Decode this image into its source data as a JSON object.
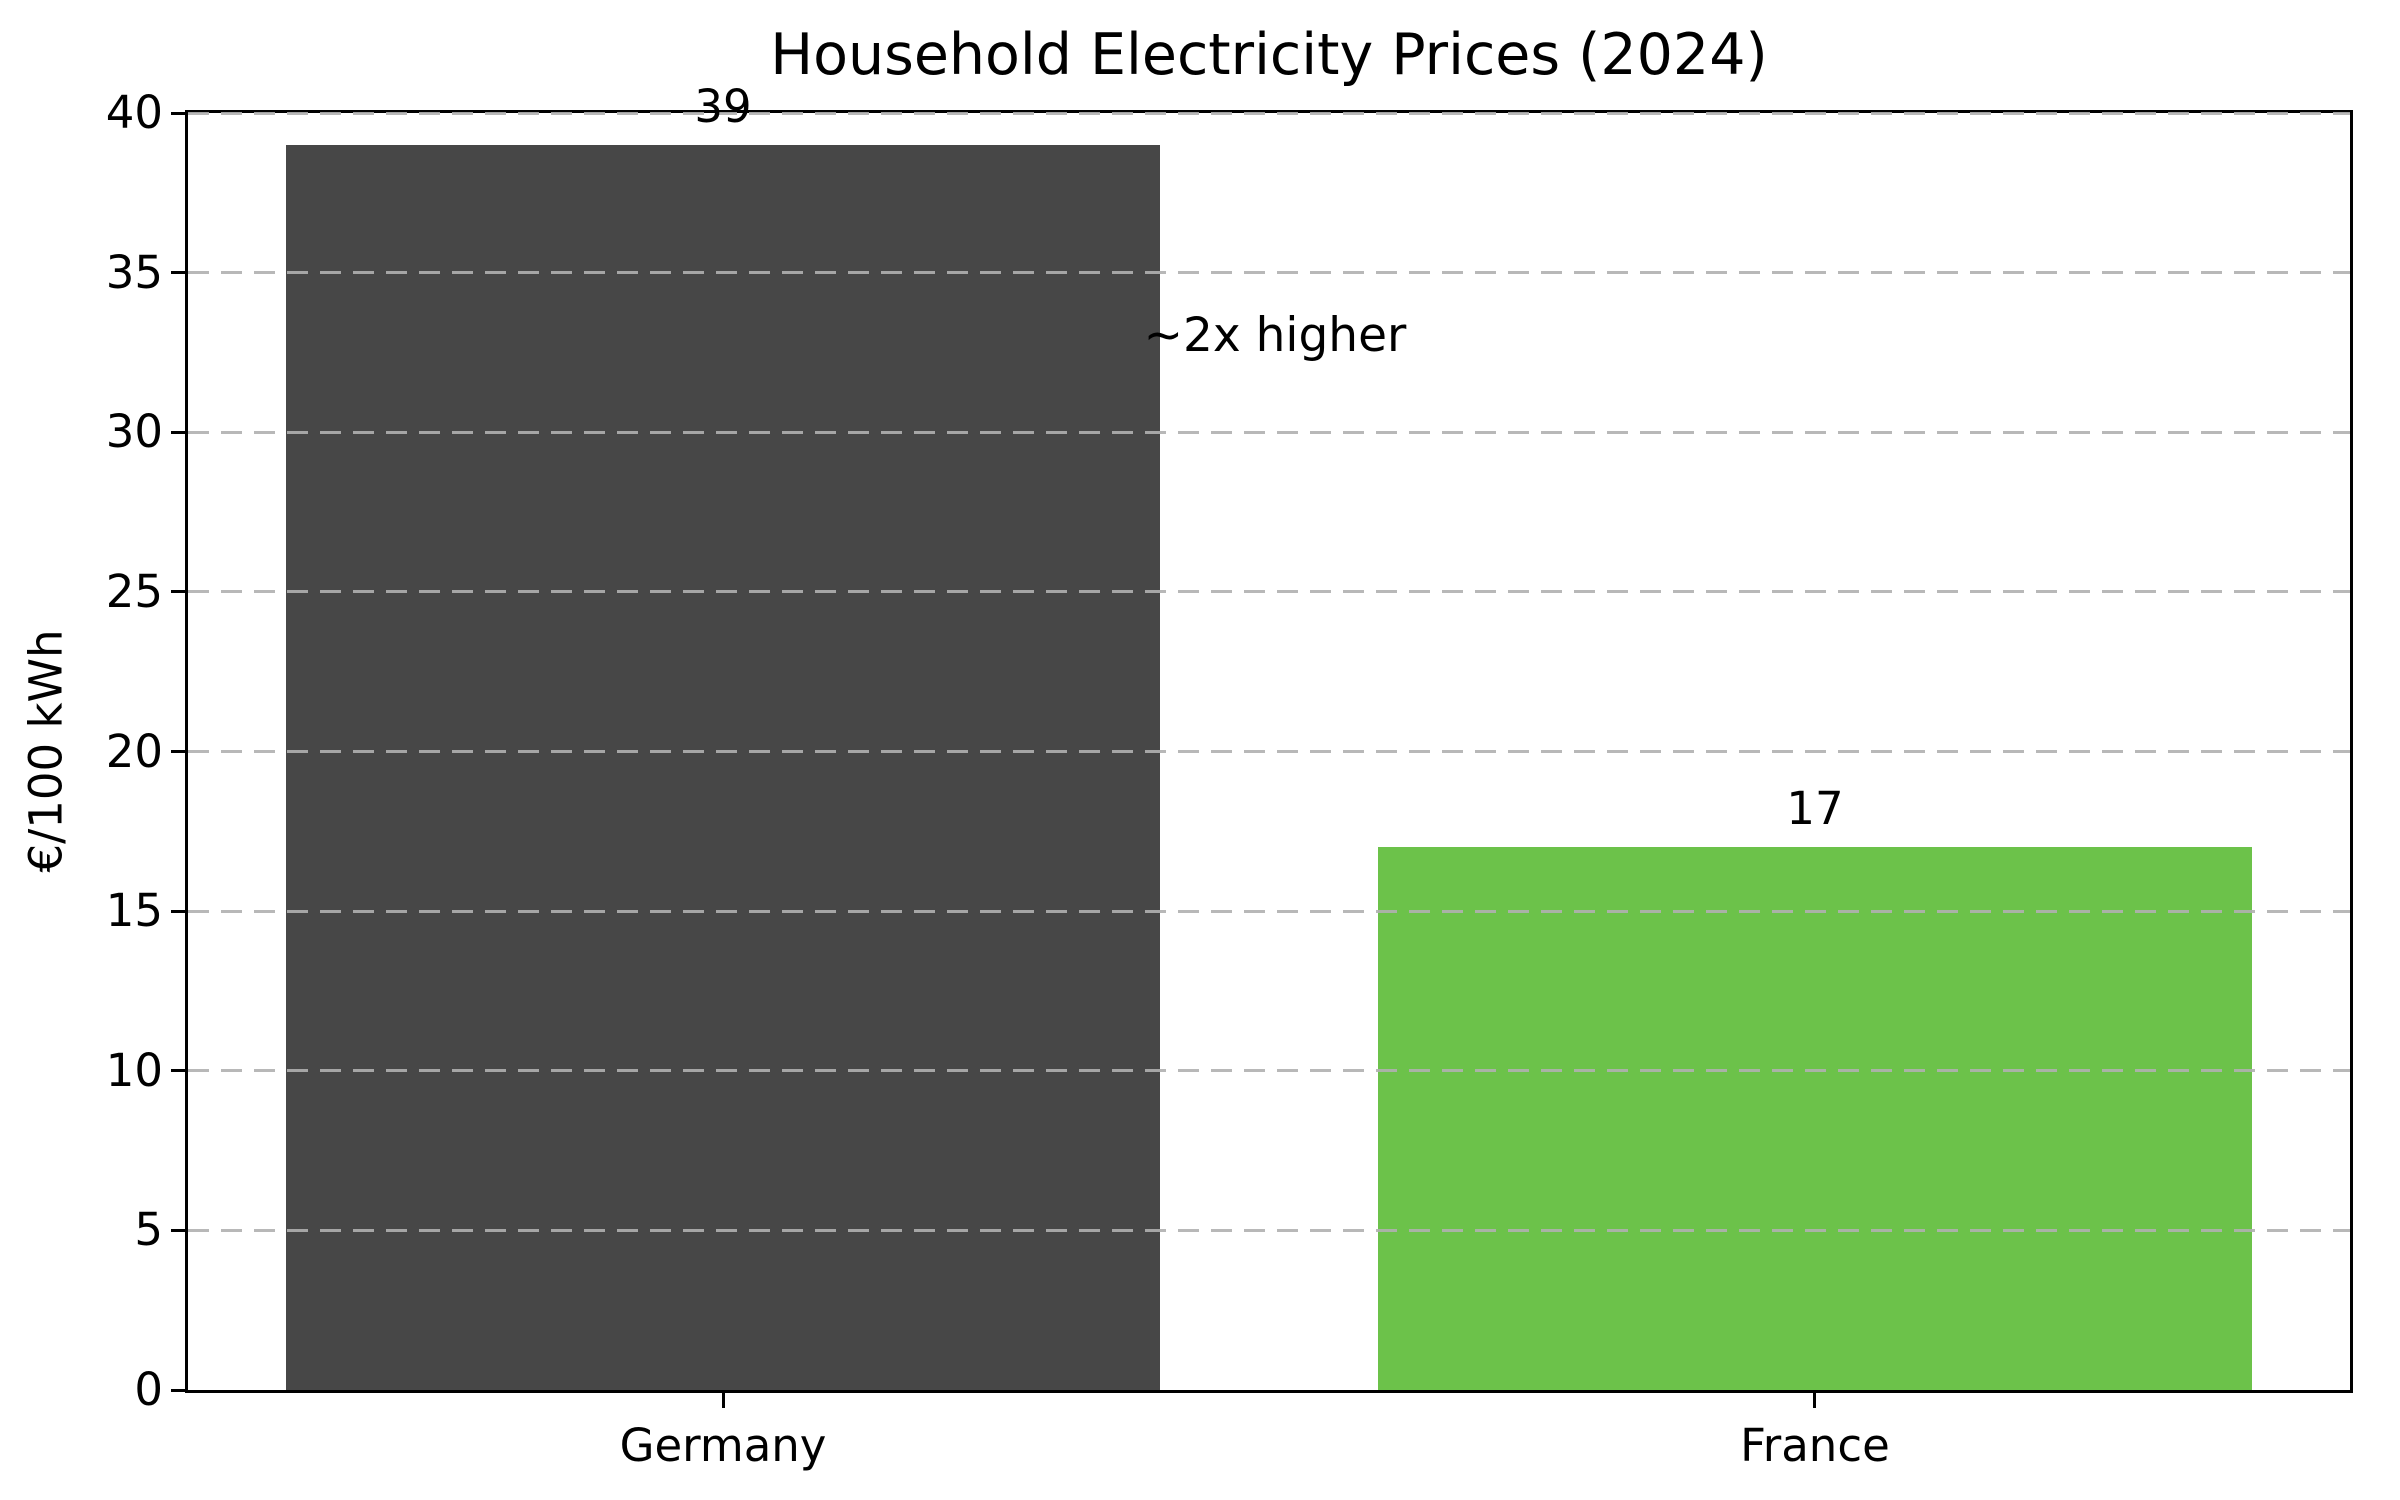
{
  "figure": {
    "background": "#ffffff"
  },
  "chart_data": {
    "type": "bar",
    "title": "Household Electricity Prices (2024)",
    "categories": [
      "Germany",
      "France"
    ],
    "values": [
      39,
      17
    ],
    "bar_value_labels": [
      "39",
      "17"
    ],
    "bar_colors": [
      "#474747",
      "#6cc24a"
    ],
    "xlabel": "",
    "ylabel": "€/100 kWh",
    "ylim": [
      0,
      40
    ],
    "yticks": [
      0,
      5,
      10,
      15,
      20,
      25,
      30,
      35,
      40
    ],
    "grid": {
      "axis": "y",
      "style": "dashed",
      "color": "#b0b0b0"
    },
    "legend": null,
    "bar_width_frac": 0.8,
    "x_margin": 0.49,
    "annotations": [
      {
        "text": "~2x higher",
        "x_frac": 0.442,
        "y_value": 33.0,
        "align": "left"
      }
    ]
  }
}
